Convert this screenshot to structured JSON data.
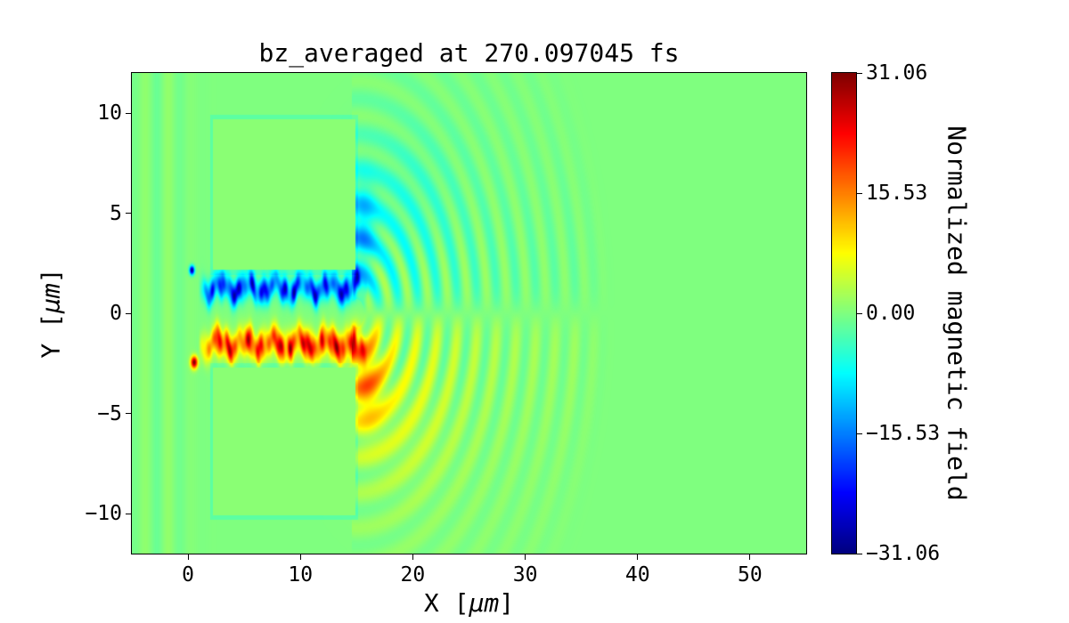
{
  "chart_data": {
    "type": "heatmap",
    "title": "bz_averaged at 270.097045 fs",
    "time_label_fs": "270.097045",
    "xlabel": {
      "prefix": "X [",
      "unit": "μm",
      "suffix": "]"
    },
    "ylabel": {
      "prefix": "Y [",
      "unit": "μm",
      "suffix": "]"
    },
    "xlim": [
      -5,
      55
    ],
    "ylim": [
      -12,
      12
    ],
    "grid": false,
    "legend": "none",
    "xticks": [
      {
        "value": 0,
        "label": "0"
      },
      {
        "value": 10,
        "label": "10"
      },
      {
        "value": 20,
        "label": "20"
      },
      {
        "value": 30,
        "label": "30"
      },
      {
        "value": 40,
        "label": "40"
      },
      {
        "value": 50,
        "label": "50"
      }
    ],
    "yticks": [
      {
        "value": 10,
        "label": "10"
      },
      {
        "value": 5,
        "label": "5"
      },
      {
        "value": 0,
        "label": "0"
      },
      {
        "value": -5,
        "label": "−5"
      },
      {
        "value": -10,
        "label": "−10"
      }
    ],
    "colorbar": {
      "label": "Normalized magnetic field",
      "colormap": "jet",
      "vmin": -31.06,
      "vmax": 31.06,
      "ticks": [
        {
          "value": 31.06,
          "label": "31.06"
        },
        {
          "value": 15.53,
          "label": "15.53"
        },
        {
          "value": 0,
          "label": "0.00"
        },
        {
          "value": -15.53,
          "label": "−15.53"
        },
        {
          "value": -31.06,
          "label": "−31.06"
        }
      ]
    },
    "field_model": {
      "background_value": 0,
      "blocks": [
        {
          "x0": 2.1,
          "x1": 15.0,
          "y0": 2.05,
          "y1": 9.8,
          "inner_value": 0.7,
          "edge_value": -2.2
        },
        {
          "x0": 2.1,
          "x1": 15.0,
          "y0": -10.2,
          "y1": -2.6,
          "inner_value": 0.7,
          "edge_value": -2.2
        }
      ],
      "channel": {
        "x_start": 0.9,
        "x_end": 16.0,
        "lobes": [
          {
            "y_center": 1.25,
            "sigma": 0.6,
            "amplitude": -26
          },
          {
            "y_center": -1.55,
            "sigma": 0.68,
            "amplitude": 27
          }
        ]
      },
      "rings": {
        "center_x": 15.0,
        "center_y": 0.0,
        "wavenumber": 3.6,
        "amplitude": 10,
        "radial_decay": 12,
        "vertical_decay": 9,
        "max_radius": 23,
        "bias": 0.35
      },
      "blobs": [
        {
          "x": 15.6,
          "y": 4.2,
          "sx": 1.1,
          "sy": 2.4,
          "amplitude": -9
        },
        {
          "x": 15.9,
          "y": -3.4,
          "sx": 1.5,
          "sy": 2.2,
          "amplitude": 12
        },
        {
          "x": 19.0,
          "y": 5.5,
          "sx": 4.5,
          "sy": 3.5,
          "amplitude": -2.5
        },
        {
          "x": 19.0,
          "y": -5.5,
          "sx": 4.5,
          "sy": 3.5,
          "amplitude": 2.5
        }
      ],
      "dots": [
        {
          "x": 0.35,
          "y": 2.15,
          "radius": 0.22,
          "amplitude": -31
        },
        {
          "x": 0.55,
          "y": -2.45,
          "radius": 0.3,
          "amplitude": 31
        }
      ],
      "left_ripple": {
        "amplitude": 1.3,
        "wavenumber": 3.0,
        "center": -2.5,
        "width": 2.6
      }
    }
  }
}
